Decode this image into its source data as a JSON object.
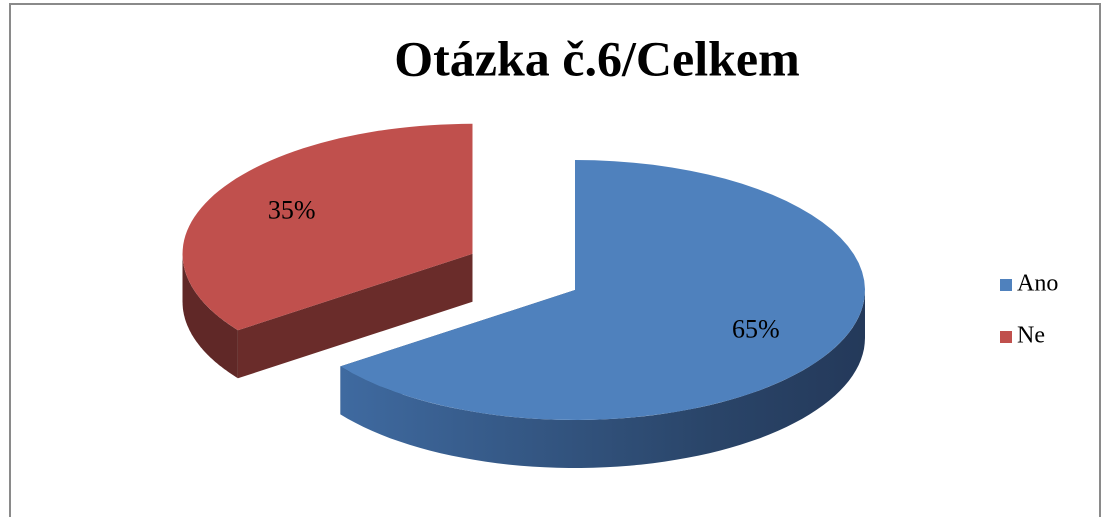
{
  "chart_data": {
    "type": "pie",
    "title": "Otázka č.6/Celkem",
    "categories": [
      "Ano",
      "Ne"
    ],
    "values": [
      65,
      35
    ],
    "value_labels": [
      "65%",
      "35%"
    ],
    "colors": [
      "#4f81bd",
      "#c0504d"
    ],
    "legend": "right"
  }
}
